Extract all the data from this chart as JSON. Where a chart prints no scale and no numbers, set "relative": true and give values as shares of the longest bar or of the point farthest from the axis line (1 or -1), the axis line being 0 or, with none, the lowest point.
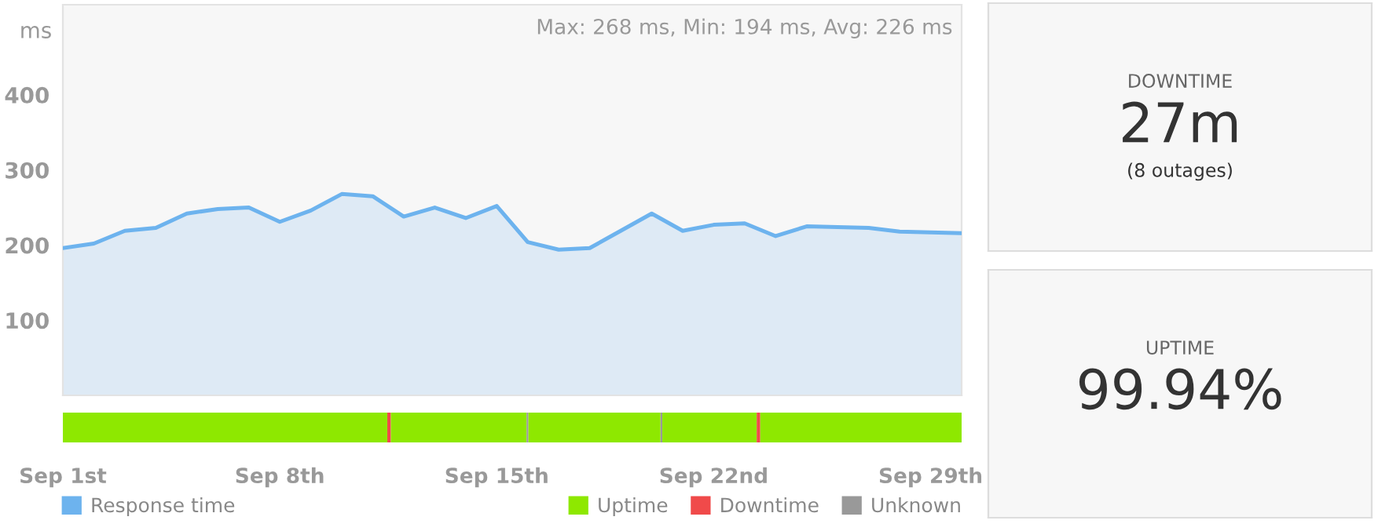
{
  "chart_data": [
    {
      "type": "area",
      "ylabel": "ms",
      "annotations": [
        "Max: 268 ms, Min: 194 ms, Avg: 226 ms"
      ],
      "categories": [
        "Sep 1st",
        null,
        null,
        null,
        null,
        null,
        null,
        "Sep 8th",
        null,
        null,
        null,
        null,
        null,
        null,
        "Sep 15th",
        null,
        null,
        null,
        null,
        null,
        null,
        "Sep 22nd",
        null,
        null,
        null,
        null,
        null,
        null,
        "Sep 29th",
        null
      ],
      "series": [
        {
          "name": "Response time",
          "color": "#6db3ee",
          "values": [
            196,
            202,
            219,
            223,
            242,
            248,
            250,
            231,
            246,
            268,
            265,
            238,
            250,
            236,
            252,
            204,
            194,
            196,
            219,
            242,
            219,
            227,
            229,
            212,
            225,
            224,
            223,
            218,
            217,
            216
          ]
        }
      ],
      "ylim": [
        0,
        520
      ],
      "yticks": [
        100,
        200,
        300,
        400
      ],
      "grid": false,
      "legend": "bottom left",
      "marker": "none",
      "line_style": "solid"
    },
    {
      "type": "bar",
      "orientation": "horizontal",
      "stacked": true,
      "relative": true,
      "categories": [
        null
      ],
      "series": [
        {
          "name": "Uptime",
          "color": "#8ee800",
          "values": [
            0.361
          ]
        },
        {
          "name": "Downtime",
          "color": "#f04a4a",
          "values": [
            0.004
          ]
        },
        {
          "color": "#8ee800",
          "values": [
            0.151
          ]
        },
        {
          "name": "Unknown",
          "color": "#999999",
          "values": [
            0.002
          ]
        },
        {
          "color": "#8ee800",
          "values": [
            0.147
          ]
        },
        {
          "color": "#999999",
          "values": [
            0.002
          ]
        },
        {
          "color": "#8ee800",
          "values": [
            0.105
          ]
        },
        {
          "color": "#f04a4a",
          "values": [
            0.004
          ]
        },
        {
          "color": "#8ee800",
          "values": [
            0.224
          ]
        }
      ],
      "legend": "bottom right"
    },
    {
      "type": "other",
      "title": "DOWNTIME",
      "annotations": [
        "27m",
        "(8 outages)"
      ]
    },
    {
      "type": "other",
      "title": "UPTIME",
      "annotations": [
        "99.94%"
      ]
    }
  ]
}
